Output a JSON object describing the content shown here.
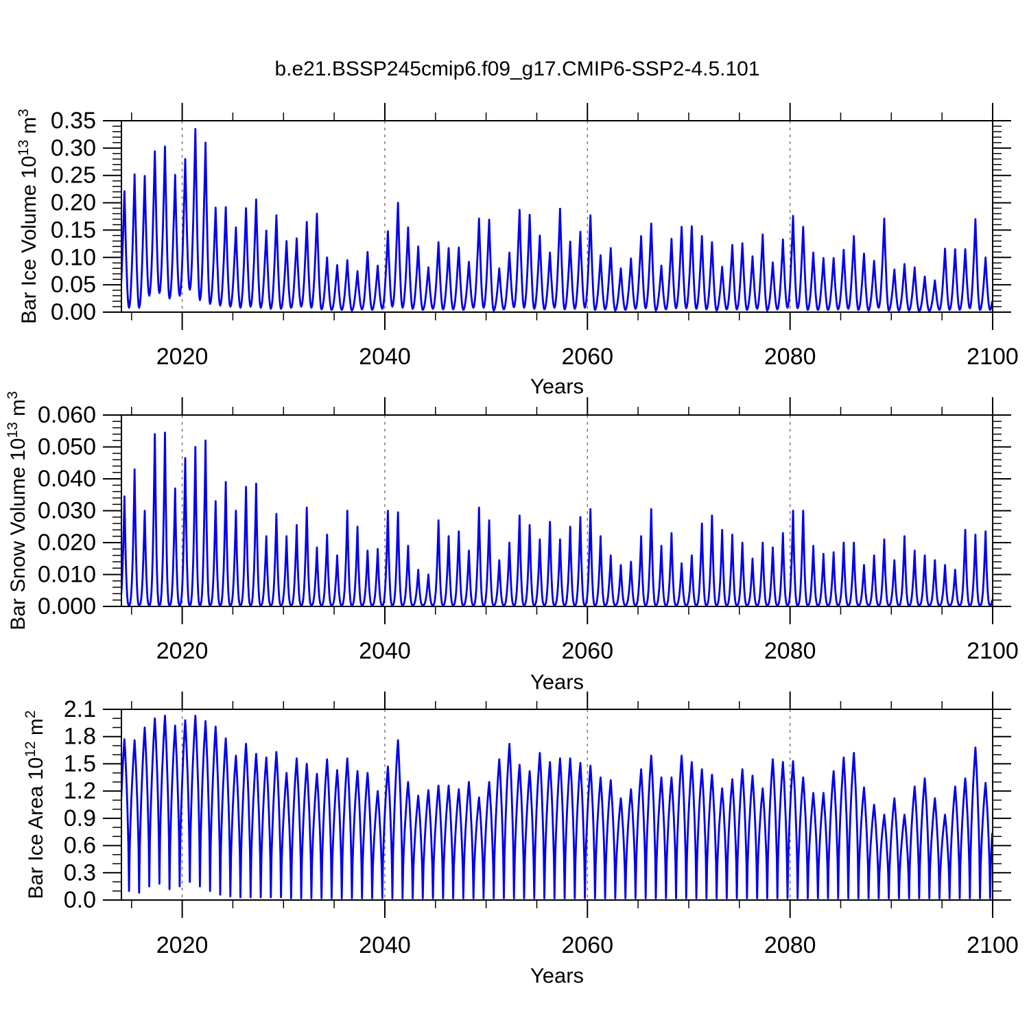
{
  "title": "b.e21.BSSP245cmip6.f09_g17.CMIP6-SSP2-4.5.101",
  "line_color": "#0000ee",
  "grid_color": "#707070",
  "chart_data": [
    {
      "type": "line",
      "name": "bar-ice-volume",
      "ylabel_text": "Bar Ice Volume 10^13 m^3",
      "ylabel_parts": [
        {
          "t": "Bar Ice Volume 10"
        },
        {
          "t": "13",
          "sup": true
        },
        {
          "t": " m"
        },
        {
          "t": "3",
          "sup": true
        }
      ],
      "xlabel": "Years",
      "x_range": [
        2014,
        2100
      ],
      "x_major_ticks": [
        2020,
        2040,
        2060,
        2080,
        2100
      ],
      "x_tick_labels": [
        "2020",
        "2040",
        "2060",
        "2080",
        "2100"
      ],
      "x_minor_step": 5,
      "gridline_years": [
        2020,
        2040,
        2060,
        2080
      ],
      "y_range": [
        0,
        0.35
      ],
      "y_major_step": 0.05,
      "y_minor_step": 0.01,
      "y_tick_labels": [
        "0.00",
        "0.05",
        "0.10",
        "0.15",
        "0.20",
        "0.25",
        "0.30",
        "0.35"
      ],
      "series": {
        "name": "bar-ice-volume-line",
        "years_start": 2013,
        "peak_phase": 0.3,
        "trough_phase": 0.75,
        "shape_exp": 1.0,
        "annual_peaks": [
          0.2,
          0.221,
          0.252,
          0.249,
          0.294,
          0.303,
          0.251,
          0.28,
          0.335,
          0.31,
          0.191,
          0.192,
          0.155,
          0.19,
          0.206,
          0.149,
          0.177,
          0.13,
          0.135,
          0.165,
          0.18,
          0.1,
          0.086,
          0.095,
          0.075,
          0.11,
          0.085,
          0.148,
          0.2,
          0.155,
          0.12,
          0.082,
          0.128,
          0.117,
          0.118,
          0.092,
          0.171,
          0.169,
          0.08,
          0.109,
          0.187,
          0.178,
          0.14,
          0.109,
          0.189,
          0.129,
          0.147,
          0.177,
          0.104,
          0.117,
          0.08,
          0.098,
          0.139,
          0.162,
          0.085,
          0.134,
          0.156,
          0.157,
          0.139,
          0.128,
          0.083,
          0.123,
          0.126,
          0.102,
          0.142,
          0.091,
          0.133,
          0.176,
          0.156,
          0.109,
          0.099,
          0.099,
          0.114,
          0.139,
          0.107,
          0.094,
          0.171,
          0.078,
          0.088,
          0.082,
          0.065,
          0.058,
          0.116,
          0.115,
          0.115,
          0.17,
          0.1
        ],
        "annual_troughs": [
          0.012,
          0.008,
          0.008,
          0.03,
          0.035,
          0.025,
          0.03,
          0.041,
          0.022,
          0.015,
          0.012,
          0.01,
          0.008,
          0.01,
          0.008,
          0.006,
          0.006,
          0.008,
          0.01,
          0.008,
          0.005,
          0.004,
          0.004,
          0.003,
          0.005,
          0.004,
          0.006,
          0.01,
          0.008,
          0.006,
          0.004,
          0.006,
          0.005,
          0.005,
          0.004,
          0.008,
          0.008,
          0.003,
          0.005,
          0.009,
          0.008,
          0.006,
          0.005,
          0.008,
          0.005,
          0.006,
          0.008,
          0.004,
          0.005,
          0.003,
          0.004,
          0.006,
          0.007,
          0.003,
          0.005,
          0.007,
          0.007,
          0.006,
          0.005,
          0.003,
          0.005,
          0.005,
          0.004,
          0.006,
          0.003,
          0.005,
          0.008,
          0.007,
          0.004,
          0.004,
          0.004,
          0.005,
          0.006,
          0.004,
          0.003,
          0.008,
          0.003,
          0.003,
          0.003,
          0.002,
          0.002,
          0.004,
          0.004,
          0.004,
          0.007,
          0.004,
          0.004
        ]
      }
    },
    {
      "type": "line",
      "name": "bar-snow-volume",
      "ylabel_text": "Bar Snow Volume 10^13 m^3",
      "ylabel_parts": [
        {
          "t": "Bar Snow Volume 10"
        },
        {
          "t": "13",
          "sup": true
        },
        {
          "t": " m"
        },
        {
          "t": "3",
          "sup": true
        }
      ],
      "xlabel": "Years",
      "x_range": [
        2014,
        2100
      ],
      "x_major_ticks": [
        2020,
        2040,
        2060,
        2080,
        2100
      ],
      "x_tick_labels": [
        "2020",
        "2040",
        "2060",
        "2080",
        "2100"
      ],
      "x_minor_step": 5,
      "gridline_years": [
        2020,
        2040,
        2060,
        2080
      ],
      "y_range": [
        0,
        0.06
      ],
      "y_major_step": 0.01,
      "y_minor_step": 0.002,
      "y_tick_labels": [
        "0.000",
        "0.010",
        "0.020",
        "0.030",
        "0.040",
        "0.050",
        "0.060"
      ],
      "series": {
        "name": "bar-snow-volume-line",
        "years_start": 2013,
        "peak_phase": 0.3,
        "trough_phase": 0.75,
        "shape_exp": 1.5,
        "annual_peaks": [
          0.03,
          0.0345,
          0.043,
          0.03,
          0.054,
          0.0545,
          0.037,
          0.0465,
          0.05,
          0.052,
          0.033,
          0.039,
          0.03,
          0.0375,
          0.0385,
          0.022,
          0.029,
          0.022,
          0.0255,
          0.031,
          0.0185,
          0.0225,
          0.016,
          0.03,
          0.025,
          0.0175,
          0.018,
          0.03,
          0.0295,
          0.019,
          0.0115,
          0.01,
          0.027,
          0.022,
          0.0235,
          0.0175,
          0.031,
          0.027,
          0.0145,
          0.02,
          0.0285,
          0.0255,
          0.021,
          0.0265,
          0.021,
          0.025,
          0.028,
          0.0305,
          0.022,
          0.016,
          0.013,
          0.014,
          0.022,
          0.0305,
          0.019,
          0.023,
          0.0135,
          0.016,
          0.026,
          0.0285,
          0.024,
          0.0225,
          0.02,
          0.015,
          0.02,
          0.0185,
          0.023,
          0.03,
          0.03,
          0.019,
          0.0165,
          0.017,
          0.02,
          0.02,
          0.013,
          0.016,
          0.021,
          0.0145,
          0.022,
          0.0175,
          0.016,
          0.0145,
          0.013,
          0.0115,
          0.024,
          0.0225,
          0.0235
        ],
        "annual_troughs": [
          0.0004
        ]
      }
    },
    {
      "type": "line",
      "name": "bar-ice-area",
      "ylabel_text": "Bar Ice Area 10^12 m^2",
      "ylabel_parts": [
        {
          "t": "Bar Ice Area 10"
        },
        {
          "t": "12",
          "sup": true
        },
        {
          "t": " m"
        },
        {
          "t": "2",
          "sup": true
        }
      ],
      "xlabel": "Years",
      "x_range": [
        2014,
        2100
      ],
      "x_major_ticks": [
        2020,
        2040,
        2060,
        2080,
        2100
      ],
      "x_tick_labels": [
        "2020",
        "2040",
        "2060",
        "2080",
        "2100"
      ],
      "x_minor_step": 5,
      "gridline_years": [
        2020,
        2040,
        2060,
        2080
      ],
      "y_range": [
        0,
        2.1
      ],
      "y_major_step": 0.3,
      "y_minor_step": 0.1,
      "y_tick_labels": [
        "0.0",
        "0.3",
        "0.6",
        "0.9",
        "1.2",
        "1.5",
        "1.8",
        "2.1"
      ],
      "series": {
        "name": "bar-ice-area-line",
        "years_start": 2013,
        "peak_phase": 0.3,
        "trough_phase": 0.75,
        "shape_exp": 0.32,
        "annual_peaks": [
          1.7,
          1.77,
          1.76,
          1.9,
          2.0,
          2.03,
          1.92,
          1.98,
          2.03,
          1.97,
          1.91,
          1.78,
          1.59,
          1.72,
          1.61,
          1.57,
          1.63,
          1.4,
          1.56,
          1.5,
          1.39,
          1.55,
          1.43,
          1.56,
          1.42,
          1.4,
          1.2,
          1.47,
          1.76,
          1.3,
          1.15,
          1.21,
          1.26,
          1.26,
          1.22,
          1.3,
          1.13,
          1.3,
          1.55,
          1.72,
          1.49,
          1.42,
          1.62,
          1.52,
          1.56,
          1.56,
          1.51,
          1.48,
          1.35,
          1.32,
          1.12,
          1.22,
          1.44,
          1.59,
          1.35,
          1.35,
          1.59,
          1.52,
          1.44,
          1.38,
          1.23,
          1.33,
          1.44,
          1.37,
          1.23,
          1.55,
          1.52,
          1.53,
          1.35,
          1.18,
          1.18,
          1.42,
          1.57,
          1.62,
          1.24,
          1.05,
          0.94,
          1.12,
          0.94,
          1.25,
          1.34,
          1.12,
          0.94,
          1.25,
          1.34,
          1.68,
          1.29
        ],
        "annual_troughs": [
          0.12,
          0.1,
          0.08,
          0.15,
          0.18,
          0.12,
          0.15,
          0.2,
          0.15,
          0.1,
          0.06,
          0.04,
          0.03,
          0.03,
          0.03,
          0.03,
          0.03,
          0.02
        ]
      }
    }
  ]
}
